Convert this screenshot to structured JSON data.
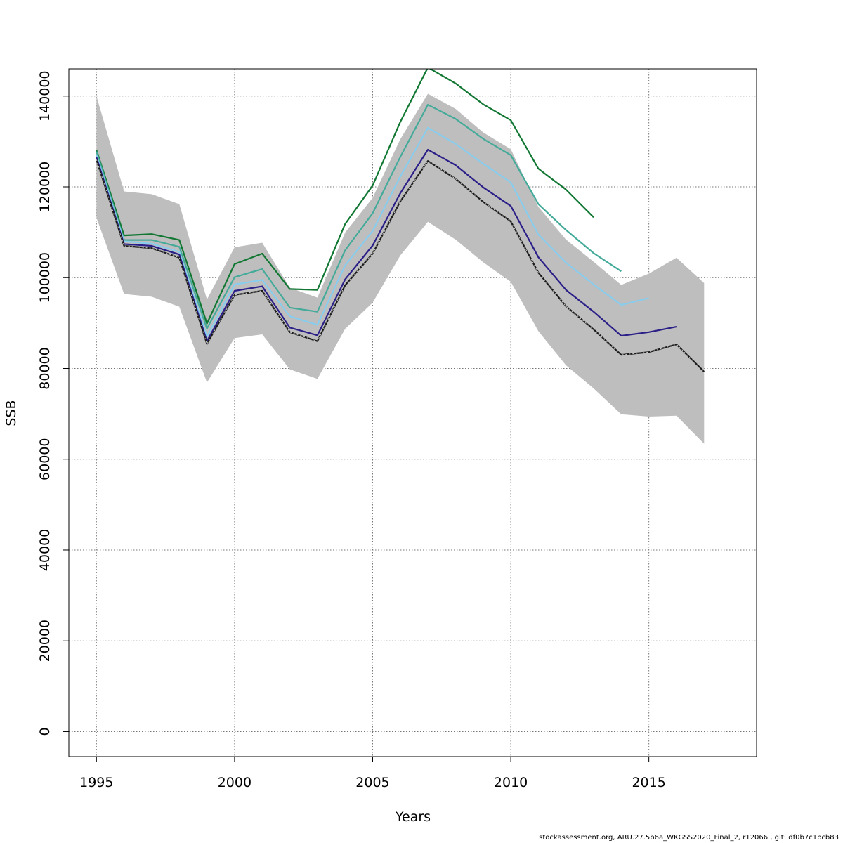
{
  "chart_data": {
    "type": "line",
    "title": "",
    "xlabel": "Years",
    "ylabel": "SSB",
    "xlim": [
      1994,
      2018.9
    ],
    "ylim": [
      -5500,
      146000
    ],
    "x_ticks": [
      1995,
      2000,
      2005,
      2010,
      2015
    ],
    "y_ticks": [
      0,
      20000,
      40000,
      60000,
      80000,
      100000,
      120000,
      140000
    ],
    "grid": true,
    "legend": "none",
    "band": {
      "color": "#bebebe",
      "x": [
        1995,
        1996,
        1997,
        1998,
        1999,
        2000,
        2001,
        2002,
        2003,
        2004,
        2005,
        2006,
        2007,
        2008,
        2009,
        2010,
        2011,
        2012,
        2013,
        2014,
        2015,
        2016,
        2017
      ],
      "upper": [
        140000,
        119000,
        118400,
        116200,
        95200,
        106700,
        107700,
        97800,
        95600,
        109900,
        117600,
        130500,
        140500,
        137200,
        132000,
        128300,
        115600,
        108400,
        103500,
        98400,
        100900,
        104400,
        98800
      ],
      "lower": [
        113200,
        96400,
        95800,
        93600,
        76900,
        86700,
        87500,
        79800,
        77700,
        88700,
        94500,
        104900,
        112300,
        108400,
        103400,
        99100,
        88200,
        80700,
        75600,
        69900,
        69400,
        69600,
        63400
      ]
    },
    "series": [
      {
        "color": "#1a1a1a",
        "dashed": true,
        "x": [
          1995,
          1996,
          1997,
          1998,
          1999,
          2000,
          2001,
          2002,
          2003,
          2004,
          2005,
          2006,
          2007,
          2008,
          2009,
          2010,
          2011,
          2012,
          2013,
          2014,
          2015,
          2016,
          2017
        ],
        "values": [
          126000,
          107000,
          106500,
          104400,
          85400,
          96200,
          97100,
          88000,
          86000,
          98300,
          105300,
          116800,
          125700,
          121800,
          116700,
          112400,
          101100,
          93700,
          88600,
          83000,
          83600,
          85300,
          79300
        ]
      },
      {
        "color": "#2b1f88",
        "x": [
          1995,
          1996,
          1997,
          1998,
          1999,
          2000,
          2001,
          2002,
          2003,
          2004,
          2005,
          2006,
          2007,
          2008,
          2009,
          2010,
          2011,
          2012,
          2013,
          2014,
          2015,
          2016
        ],
        "values": [
          126500,
          107400,
          107000,
          105100,
          86000,
          97100,
          98100,
          89000,
          87300,
          99600,
          107100,
          118600,
          128200,
          124800,
          119900,
          115800,
          104500,
          97300,
          92500,
          87200,
          88000,
          89200
        ]
      },
      {
        "color": "#88ccee",
        "x": [
          1995,
          1996,
          1997,
          1998,
          1999,
          2000,
          2001,
          2002,
          2003,
          2004,
          2005,
          2006,
          2007,
          2008,
          2009,
          2010,
          2011,
          2012,
          2013,
          2014,
          2015
        ],
        "values": [
          127000,
          108000,
          107500,
          105700,
          87000,
          98500,
          99500,
          91500,
          89600,
          102700,
          110300,
          122300,
          133000,
          129500,
          125100,
          121000,
          109500,
          103300,
          98500,
          94000,
          95500
        ]
      },
      {
        "color": "#44aa99",
        "x": [
          1995,
          1996,
          1997,
          1998,
          1999,
          2000,
          2001,
          2002,
          2003,
          2004,
          2005,
          2006,
          2007,
          2008,
          2009,
          2010,
          2011,
          2012,
          2013,
          2014
        ],
        "values": [
          127800,
          108300,
          108300,
          106800,
          88800,
          100100,
          101900,
          93400,
          92500,
          106000,
          114200,
          126600,
          138100,
          135000,
          130600,
          127000,
          116200,
          110500,
          105400,
          101400
        ]
      },
      {
        "color": "#117733",
        "x": [
          1995,
          1996,
          1997,
          1998,
          1999,
          2000,
          2001,
          2002,
          2003,
          2004,
          2005,
          2006,
          2007,
          2008,
          2009,
          2010,
          2011,
          2012,
          2013
        ],
        "values": [
          128100,
          109300,
          109600,
          108300,
          89900,
          103000,
          105300,
          97500,
          97300,
          111800,
          120300,
          134300,
          146300,
          142800,
          138200,
          134700,
          124000,
          119400,
          113300
        ]
      }
    ]
  },
  "footer": "stockassessment.org, ARU.27.5b6a_WKGSS2020_Final_2, r12066 , git: df0b7c1bcb83"
}
